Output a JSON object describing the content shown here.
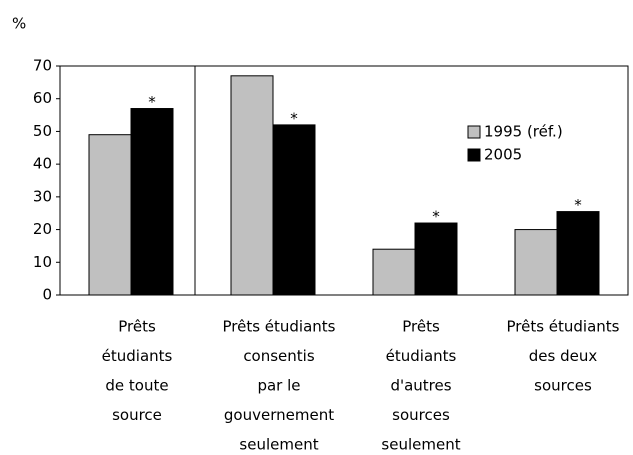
{
  "chart_data": {
    "type": "bar",
    "ylabel": "%",
    "categories": [
      [
        "Prêts",
        "étudiants",
        "de toute",
        "source"
      ],
      [
        "Prêts étudiants",
        "consentis",
        "par le",
        "gouvernement",
        "seulement"
      ],
      [
        "Prêts",
        "étudiants",
        "d'autres",
        "sources",
        "seulement"
      ],
      [
        "Prêts étudiants",
        "des deux",
        "sources"
      ]
    ],
    "series": [
      {
        "name": "1995 (réf.)",
        "color": "#c0c0c0",
        "values": [
          49,
          67,
          14,
          20
        ]
      },
      {
        "name": "2005",
        "color": "#000000",
        "values": [
          57,
          52,
          22,
          25.5
        ],
        "annotations": [
          "*",
          "*",
          "*",
          "*"
        ]
      }
    ],
    "ylim": [
      0,
      70
    ],
    "yticks": [
      0,
      10,
      20,
      30,
      40,
      50,
      60,
      70
    ],
    "grid": false,
    "legend": "upper right"
  }
}
